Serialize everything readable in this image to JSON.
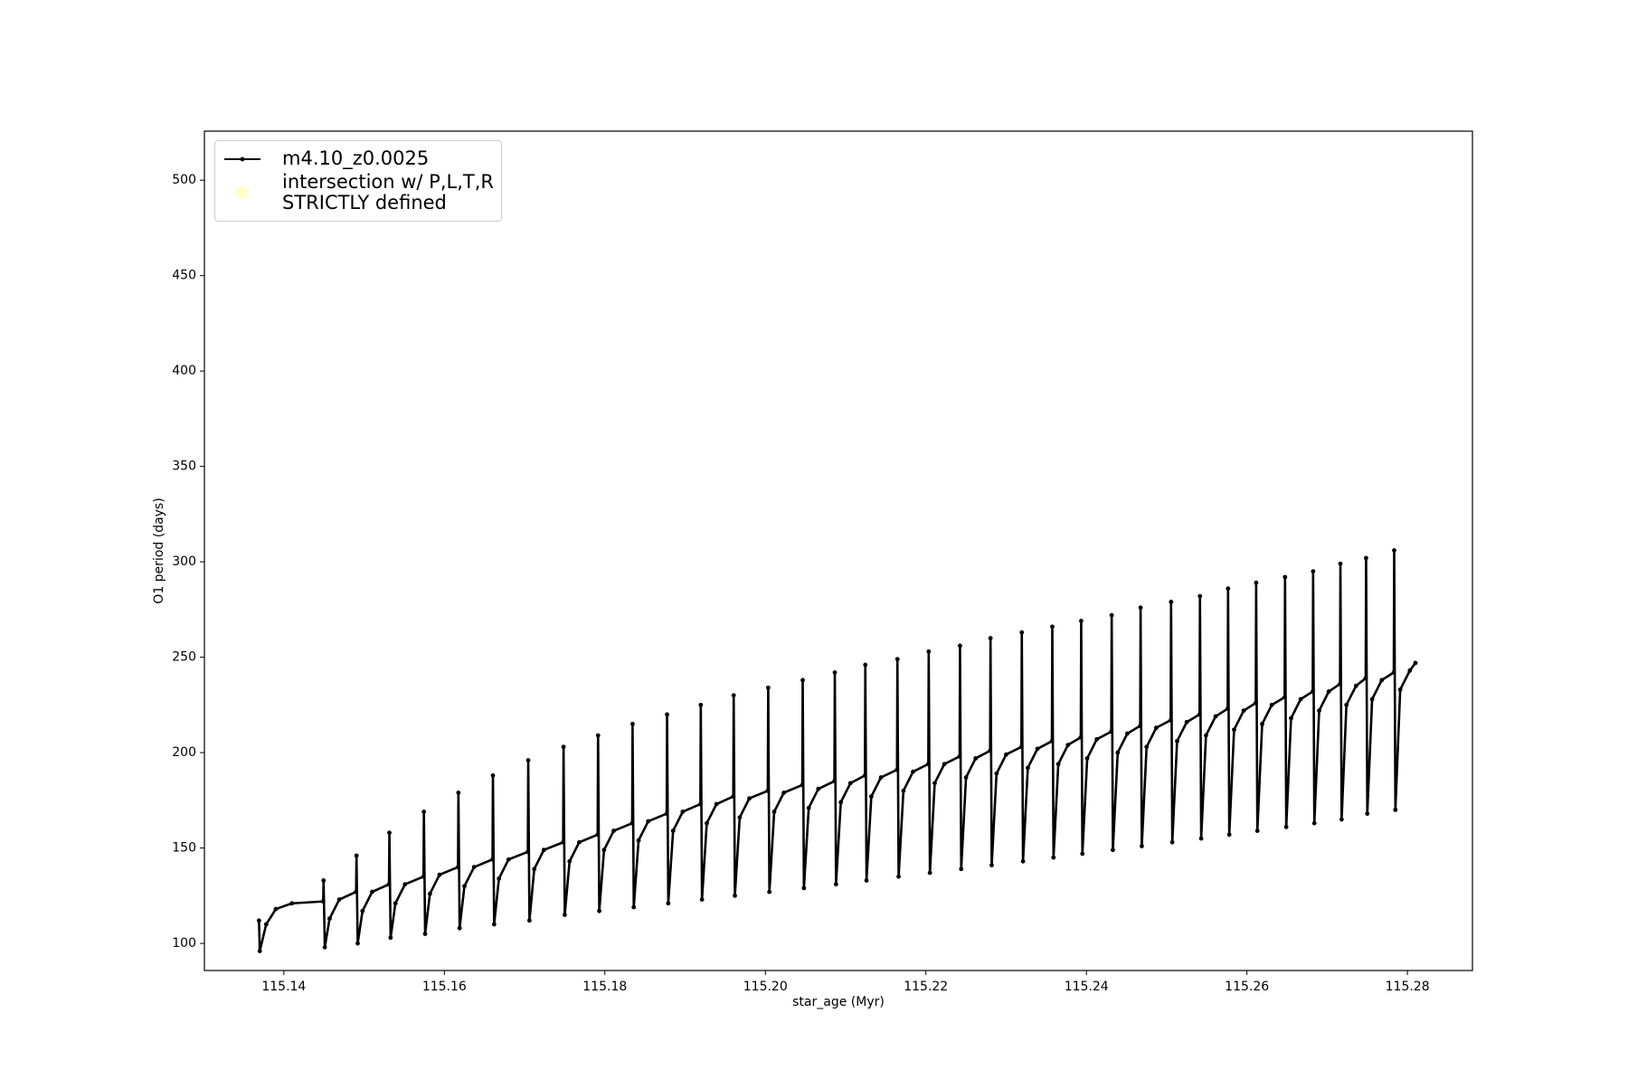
{
  "chart_data": {
    "type": "line",
    "xlabel": "star_age (Myr)",
    "ylabel": "O1 period (days)",
    "xlim": [
      115.1301,
      115.2881
    ],
    "ylim": [
      85.8,
      525.7
    ],
    "xticks": [
      115.14,
      115.16,
      115.18,
      {
        "value": 115.2,
        "label": "115.20"
      },
      115.22,
      115.24,
      115.26,
      115.28
    ],
    "yticks": [
      100,
      150,
      200,
      250,
      300,
      350,
      400,
      450,
      500
    ],
    "legend": "upper left",
    "grid": false,
    "series": [
      {
        "name": "m4.10_z0.0025",
        "color": "#000000",
        "marker": true,
        "x": [
          115.1369,
          115.137,
          115.1378,
          115.139,
          115.141,
          115.1449,
          115.14495,
          115.1451,
          115.1457,
          115.1469,
          115.149,
          115.14905,
          115.1492,
          115.1498,
          115.151,
          115.1531,
          115.15315,
          115.1533,
          115.1539,
          115.1551,
          115.1574,
          115.15745,
          115.1576,
          115.1582,
          115.1594,
          115.1617,
          115.16175,
          115.1619,
          115.1625,
          115.1637,
          115.166,
          115.16605,
          115.1662,
          115.1668,
          115.168,
          115.1704,
          115.17045,
          115.1706,
          115.1712,
          115.1724,
          115.1748,
          115.17485,
          115.175,
          115.1756,
          115.1768,
          115.1791,
          115.17915,
          115.1793,
          115.1799,
          115.1811,
          115.1834,
          115.18345,
          115.1836,
          115.1842,
          115.1854,
          115.1877,
          115.18775,
          115.1879,
          115.1885,
          115.1897,
          115.1919,
          115.19195,
          115.1921,
          115.1927,
          115.1939,
          115.196,
          115.19605,
          115.1962,
          115.1968,
          115.198,
          115.2003,
          115.20035,
          115.2005,
          115.2011,
          115.2023,
          115.2046,
          115.20465,
          115.2048,
          115.2054,
          115.2066,
          115.2086,
          115.20865,
          115.2088,
          115.2094,
          115.2106,
          115.2124,
          115.21245,
          115.2126,
          115.2132,
          115.2144,
          115.2164,
          115.21645,
          115.2166,
          115.2172,
          115.2184,
          115.2203,
          115.22035,
          115.2205,
          115.2211,
          115.2223,
          115.2242,
          115.22425,
          115.2244,
          115.225,
          115.2262,
          115.228,
          115.22805,
          115.2282,
          115.2288,
          115.23,
          115.2319,
          115.23195,
          115.2321,
          115.2327,
          115.2339,
          115.2357,
          115.23575,
          115.2359,
          115.2365,
          115.2377,
          115.2393,
          115.23935,
          115.2395,
          115.2401,
          115.2413,
          115.2431,
          115.24315,
          115.2433,
          115.2439,
          115.2451,
          115.2467,
          115.24675,
          115.2469,
          115.2475,
          115.2487,
          115.2505,
          115.25055,
          115.2507,
          115.2513,
          115.2525,
          115.2541,
          115.25415,
          115.2543,
          115.2549,
          115.2561,
          115.2576,
          115.25765,
          115.2578,
          115.2584,
          115.2596,
          115.2611,
          115.26115,
          115.2613,
          115.2619,
          115.2631,
          115.2647,
          115.26475,
          115.2649,
          115.2655,
          115.2667,
          115.2682,
          115.26825,
          115.2684,
          115.269,
          115.2702,
          115.2716,
          115.27165,
          115.2718,
          115.2724,
          115.2736,
          115.2748,
          115.27485,
          115.275,
          115.2756,
          115.2768,
          115.2783,
          115.27835,
          115.2785,
          115.2791,
          115.2803,
          115.281
        ],
        "values": [
          112,
          96,
          110,
          118,
          121,
          122,
          133,
          98,
          113,
          123,
          127,
          146,
          100,
          117,
          127,
          131,
          158,
          103,
          121,
          131,
          135,
          169,
          105,
          126,
          136,
          140,
          179,
          108,
          130,
          140,
          144,
          188,
          110,
          134,
          144,
          148,
          196,
          112,
          139,
          149,
          153,
          203,
          115,
          143,
          153,
          157,
          209,
          117,
          149,
          159,
          163,
          215,
          119,
          154,
          164,
          168,
          220,
          121,
          159,
          169,
          173,
          225,
          123,
          163,
          173,
          177,
          230,
          125,
          166,
          176,
          180,
          234,
          127,
          169,
          179,
          183,
          238,
          129,
          171,
          181,
          185,
          242,
          131,
          174,
          184,
          188,
          246,
          133,
          177,
          187,
          191,
          249,
          135,
          180,
          190,
          194,
          253,
          137,
          184,
          194,
          198,
          256,
          139,
          187,
          197,
          201,
          260,
          141,
          189,
          199,
          203,
          263,
          143,
          192,
          202,
          206,
          266,
          145,
          194,
          204,
          208,
          269,
          147,
          197,
          207,
          211,
          272,
          149,
          200,
          210,
          214,
          276,
          151,
          203,
          213,
          217,
          279,
          153,
          206,
          216,
          220,
          282,
          155,
          209,
          219,
          223,
          286,
          157,
          212,
          222,
          226,
          289,
          159,
          215,
          225,
          229,
          292,
          161,
          218,
          228,
          232,
          295,
          163,
          222,
          232,
          236,
          299,
          165,
          225,
          235,
          239,
          302,
          168,
          228,
          238,
          242,
          306,
          170,
          233,
          243,
          247
        ]
      },
      {
        "name": "intersection w/ P,L,T,R\nSTRICTLY defined",
        "color": "#ffffb3",
        "type": "scatter",
        "x": [],
        "values": []
      }
    ]
  }
}
